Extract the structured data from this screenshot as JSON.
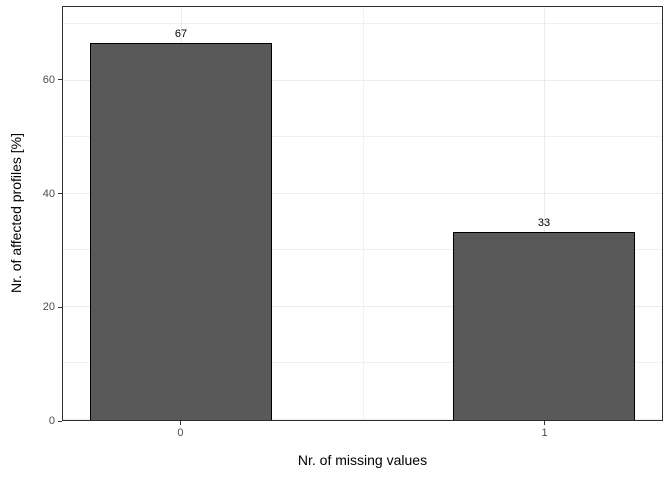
{
  "chart_data": {
    "type": "bar",
    "title": "",
    "xlabel": "Nr. of missing values",
    "ylabel": "Nr. of affected profiles [%]",
    "categories": [
      "0",
      "1"
    ],
    "values": [
      66.7,
      33.3
    ],
    "bar_labels": [
      "67",
      "33"
    ],
    "ylim": [
      0,
      73
    ],
    "y_major_ticks": [
      0,
      20,
      40,
      60
    ],
    "y_minor_gridlines": [
      10,
      30,
      50,
      70
    ],
    "grid": true,
    "legend_position": "none",
    "colors": {
      "bar_fill": "#595959",
      "bar_border": "#000000",
      "panel_border": "#2e2e2e",
      "gridline_major": "#ebebeb",
      "gridline_minor": "#f0f0f0",
      "tick_mark": "#333333",
      "tick_label": "#4d4d4d",
      "axis_title": "#000000",
      "background": "#ffffff"
    }
  }
}
